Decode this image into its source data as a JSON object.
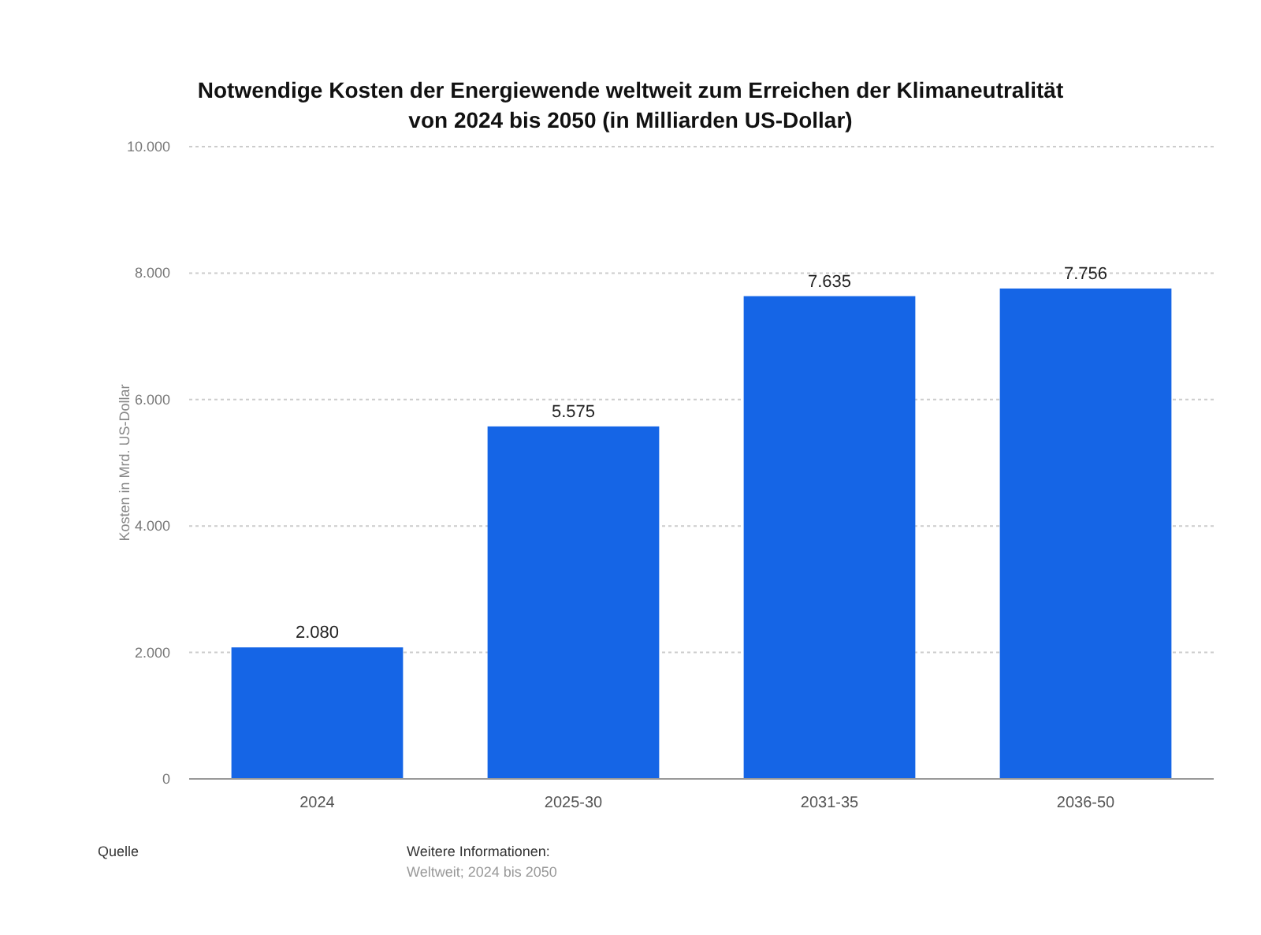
{
  "chart_data": {
    "type": "bar",
    "title": "Notwendige Kosten der Energiewende weltweit zum Erreichen der Klimaneutralität von 2024 bis 2050 (in Milliarden US-Dollar)",
    "ylabel": "Kosten in Mrd. US-Dollar",
    "categories": [
      "2024",
      "2025-30",
      "2031-35",
      "2036-50"
    ],
    "values": [
      2080,
      5575,
      7635,
      7756
    ],
    "value_labels": [
      "2.080",
      "5.575",
      "7.635",
      "7.756"
    ],
    "color": "#1565e6",
    "ylim": [
      0,
      10000
    ],
    "yticks": [
      {
        "value": 0,
        "label": "0"
      },
      {
        "value": 2000,
        "label": "2.000"
      },
      {
        "value": 4000,
        "label": "4.000"
      },
      {
        "value": 6000,
        "label": "6.000"
      },
      {
        "value": 8000,
        "label": "8.000"
      },
      {
        "value": 10000,
        "label": "10.000"
      }
    ],
    "grid": "y",
    "annotations": [
      "Quelle",
      "Weitere Informationen:",
      "Weltweit; 2024 bis 2050"
    ]
  }
}
